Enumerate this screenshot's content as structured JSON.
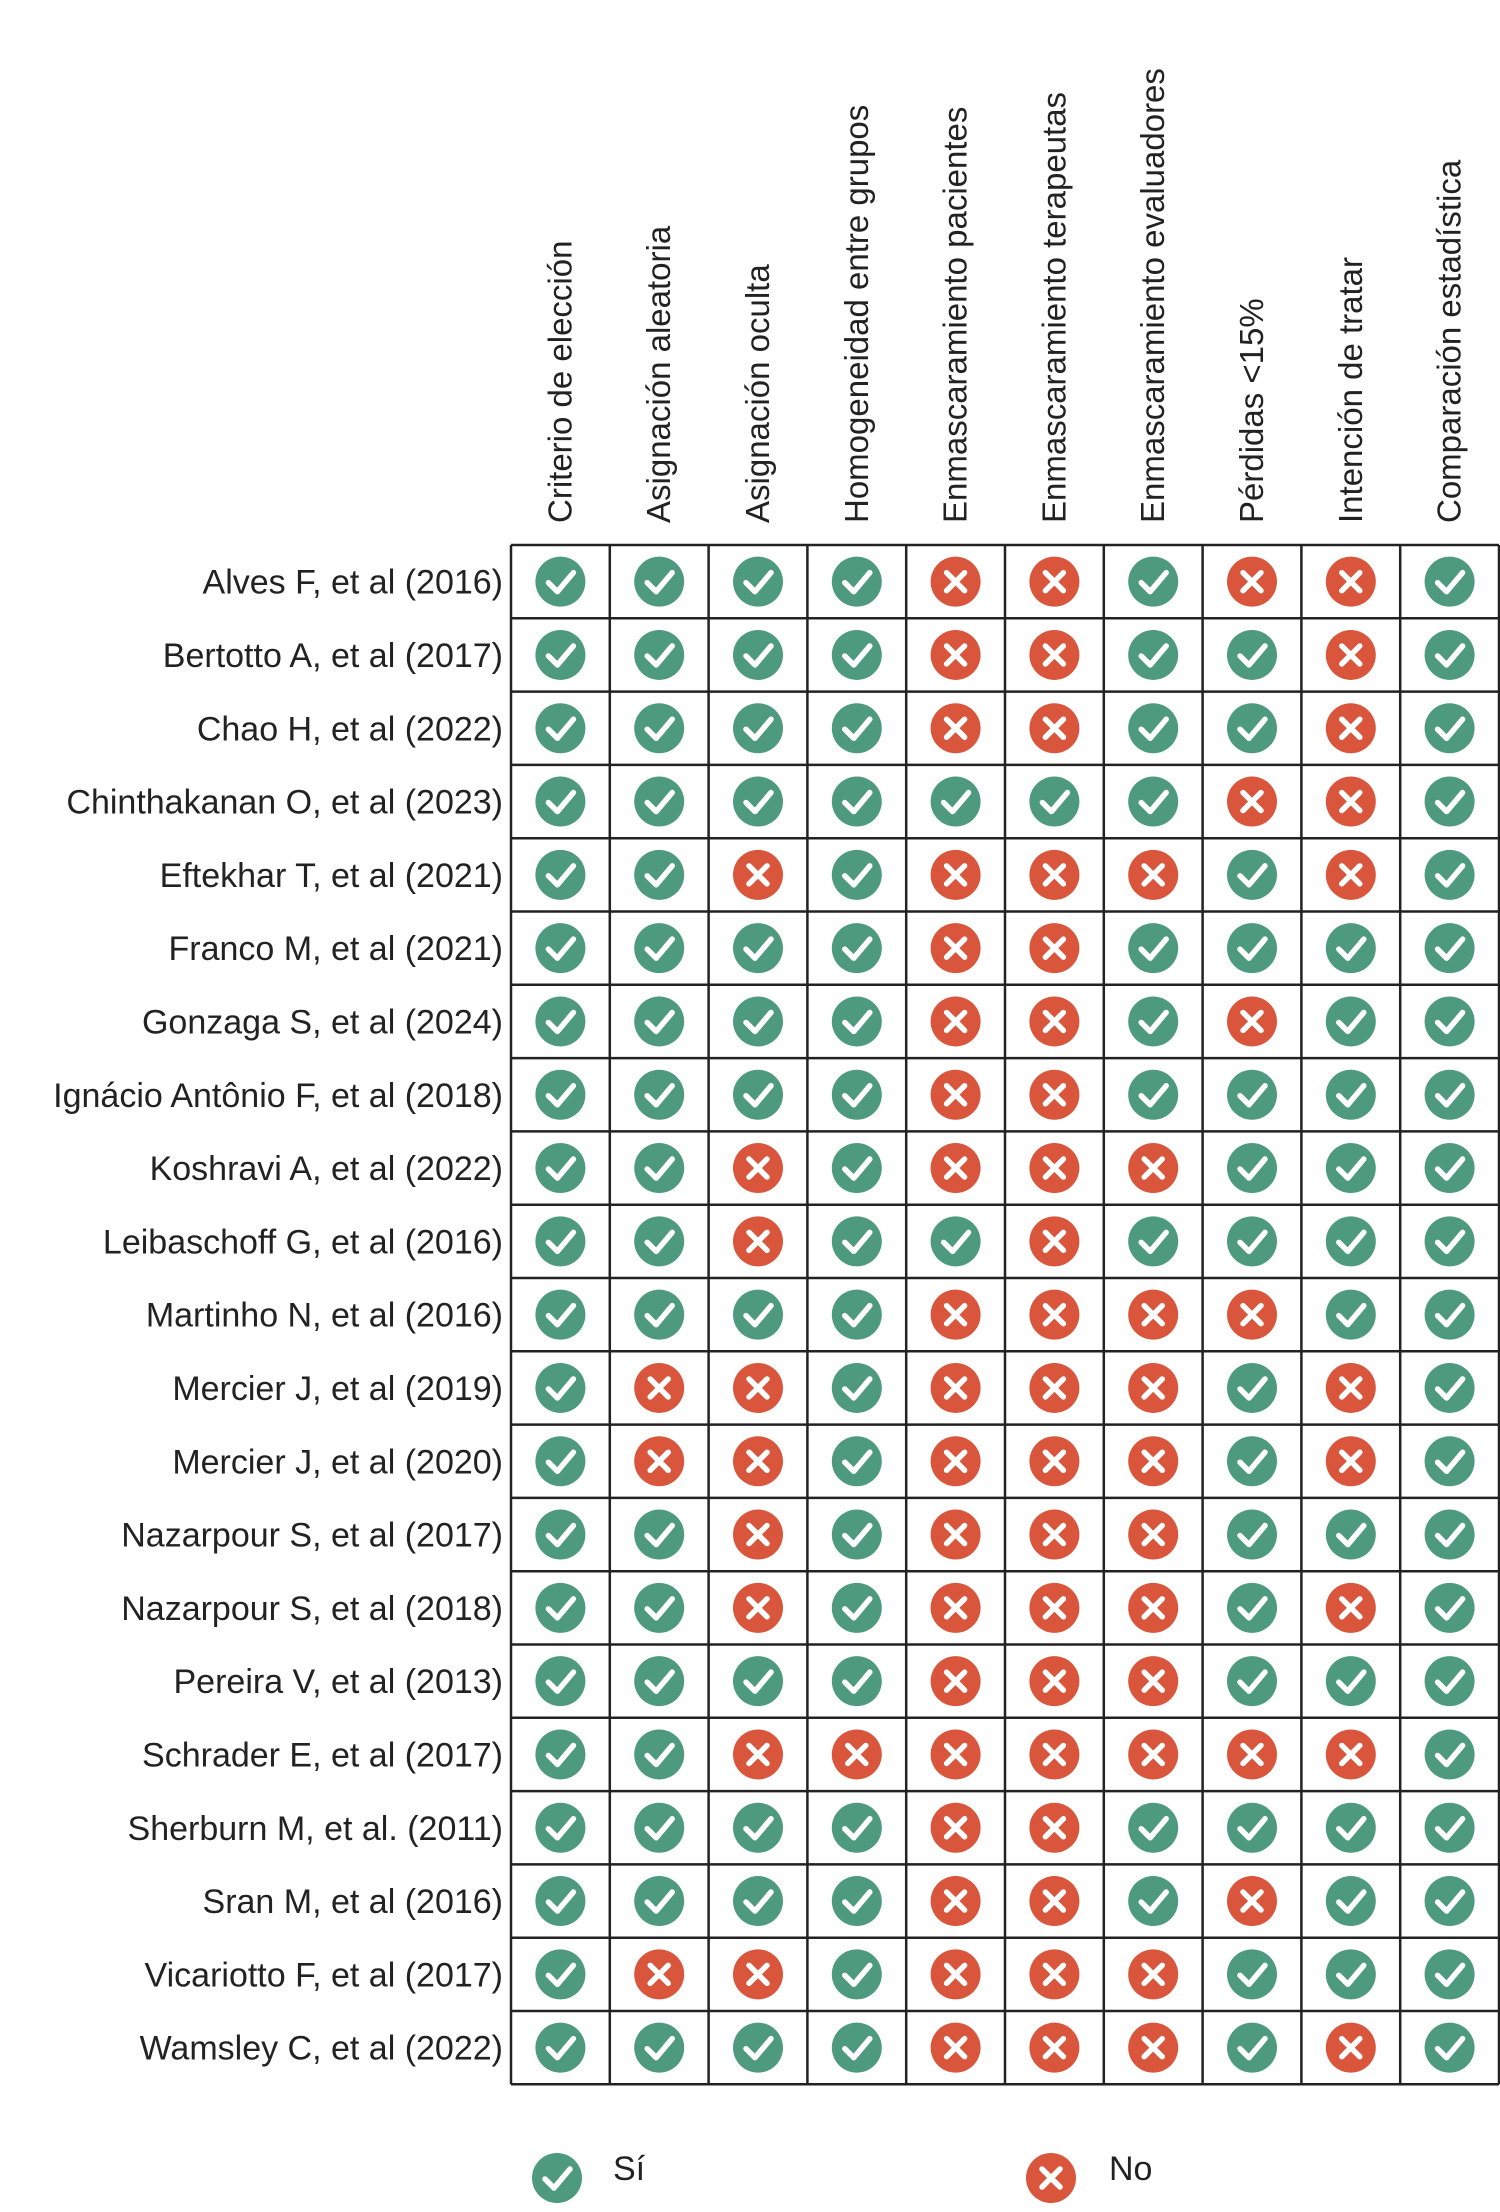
{
  "chart_data": {
    "type": "table",
    "columns": [
      "Criterio de elección",
      "Asignación aleatoria",
      "Asignación oculta",
      "Homogeneidad entre grupos",
      "Enmascaramiento pacientes",
      "Enmascaramiento terapeutas",
      "Enmascaramiento evaluadores",
      "Pérdidas <15%",
      "Intención de tratar",
      "Comparación estadística"
    ],
    "rows": [
      {
        "study": "Alves F, et al (2016)",
        "values": [
          1,
          1,
          1,
          1,
          0,
          0,
          1,
          0,
          0,
          1
        ]
      },
      {
        "study": "Bertotto A, et al (2017)",
        "values": [
          1,
          1,
          1,
          1,
          0,
          0,
          1,
          1,
          0,
          1
        ]
      },
      {
        "study": "Chao H, et al (2022)",
        "values": [
          1,
          1,
          1,
          1,
          0,
          0,
          1,
          1,
          0,
          1
        ]
      },
      {
        "study": "Chinthakanan O, et al (2023)",
        "values": [
          1,
          1,
          1,
          1,
          1,
          1,
          1,
          0,
          0,
          1
        ]
      },
      {
        "study": "Eftekhar T, et al (2021)",
        "values": [
          1,
          1,
          0,
          1,
          0,
          0,
          0,
          1,
          0,
          1
        ]
      },
      {
        "study": "Franco M, et al (2021)",
        "values": [
          1,
          1,
          1,
          1,
          0,
          0,
          1,
          1,
          1,
          1
        ]
      },
      {
        "study": "Gonzaga S, et al (2024)",
        "values": [
          1,
          1,
          1,
          1,
          0,
          0,
          1,
          0,
          1,
          1
        ]
      },
      {
        "study": "Ignácio Antônio F, et al (2018)",
        "values": [
          1,
          1,
          1,
          1,
          0,
          0,
          1,
          1,
          1,
          1
        ]
      },
      {
        "study": "Koshravi A, et al (2022)",
        "values": [
          1,
          1,
          0,
          1,
          0,
          0,
          0,
          1,
          1,
          1
        ]
      },
      {
        "study": "Leibaschoff G, et al (2016)",
        "values": [
          1,
          1,
          0,
          1,
          1,
          0,
          1,
          1,
          1,
          1
        ]
      },
      {
        "study": "Martinho N, et al (2016)",
        "values": [
          1,
          1,
          1,
          1,
          0,
          0,
          0,
          0,
          1,
          1
        ]
      },
      {
        "study": "Mercier J, et al (2019)",
        "values": [
          1,
          0,
          0,
          1,
          0,
          0,
          0,
          1,
          0,
          1
        ]
      },
      {
        "study": "Mercier J, et al (2020)",
        "values": [
          1,
          0,
          0,
          1,
          0,
          0,
          0,
          1,
          0,
          1
        ]
      },
      {
        "study": "Nazarpour S, et al (2017)",
        "values": [
          1,
          1,
          0,
          1,
          0,
          0,
          0,
          1,
          1,
          1
        ]
      },
      {
        "study": "Nazarpour S, et al (2018)",
        "values": [
          1,
          1,
          0,
          1,
          0,
          0,
          0,
          1,
          0,
          1
        ]
      },
      {
        "study": "Pereira V, et al (2013)",
        "values": [
          1,
          1,
          1,
          1,
          0,
          0,
          0,
          1,
          1,
          1
        ]
      },
      {
        "study": "Schrader E, et al (2017)",
        "values": [
          1,
          1,
          0,
          0,
          0,
          0,
          0,
          0,
          0,
          1
        ]
      },
      {
        "study": "Sherburn M, et al. (2011)",
        "values": [
          1,
          1,
          1,
          1,
          0,
          0,
          1,
          1,
          1,
          1
        ]
      },
      {
        "study": "Sran M, et al (2016)",
        "values": [
          1,
          1,
          1,
          1,
          0,
          0,
          1,
          0,
          1,
          1
        ]
      },
      {
        "study": "Vicariotto F, et al (2017)",
        "values": [
          1,
          0,
          0,
          1,
          0,
          0,
          0,
          1,
          1,
          1
        ]
      },
      {
        "study": "Wamsley C, et al (2022)",
        "values": [
          1,
          1,
          1,
          1,
          0,
          0,
          0,
          1,
          0,
          1
        ]
      }
    ],
    "legend": [
      {
        "value": 1,
        "label": "Sí",
        "color": "#4e9a7f",
        "icon": "check-icon"
      },
      {
        "value": 0,
        "label": "No",
        "color": "#d9553b",
        "icon": "cross-icon"
      }
    ],
    "legend_position": "bottom"
  }
}
